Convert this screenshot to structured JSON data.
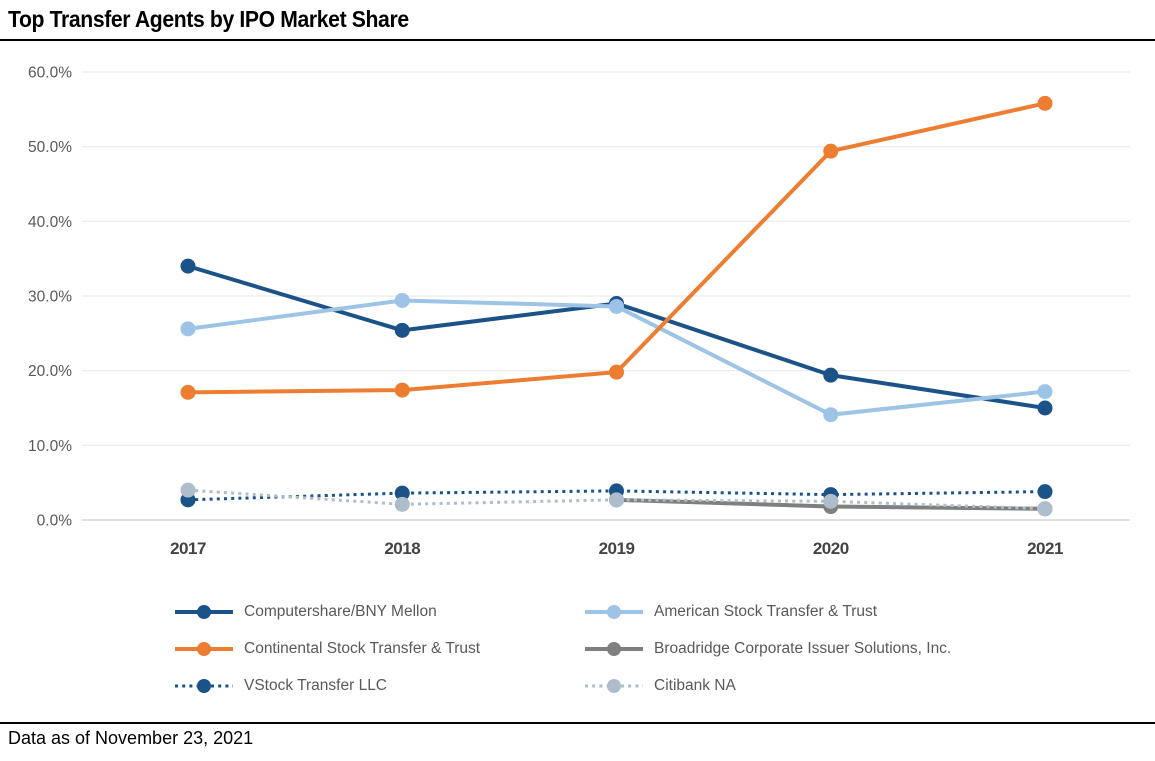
{
  "header": {
    "title": "Top Transfer Agents by IPO Market Share"
  },
  "footer": {
    "note": "Data as of November 23, 2021"
  },
  "colors": {
    "dark_blue": "#1B5288",
    "light_blue": "#9DC3E6",
    "orange": "#ED7D31",
    "gray": "#7F7F7F",
    "light_gray_blue": "#AEBDCB",
    "gridline": "#E9E9E9",
    "baseline": "#D6D6D6",
    "axis_text": "#595959",
    "xaxis_text": "#444444",
    "legend_text": "#595959"
  },
  "chart_data": {
    "type": "line",
    "title": "Top Transfer Agents by IPO Market Share",
    "categories": [
      "2017",
      "2018",
      "2019",
      "2020",
      "2021"
    ],
    "xlabel": "",
    "ylabel": "",
    "ylim": [
      0,
      60
    ],
    "grid": true,
    "legend_position": "bottom",
    "yticks": [
      "0.0%",
      "10.0%",
      "20.0%",
      "30.0%",
      "40.0%",
      "50.0%",
      "60.0%"
    ],
    "series": [
      {
        "name": "Computershare/BNY Mellon",
        "color": "#1B5288",
        "style": "solid",
        "values": [
          34.0,
          25.4,
          29.0,
          19.4,
          15.0
        ]
      },
      {
        "name": "American Stock Transfer & Trust",
        "color": "#9DC3E6",
        "style": "solid",
        "values": [
          25.6,
          29.4,
          28.6,
          14.1,
          17.2
        ]
      },
      {
        "name": "Continental Stock Transfer & Trust",
        "color": "#ED7D31",
        "style": "solid",
        "values": [
          17.1,
          17.4,
          19.8,
          49.4,
          55.8
        ]
      },
      {
        "name": "Broadridge Corporate Issuer Solutions, Inc.",
        "color": "#7F7F7F",
        "style": "solid",
        "values": [
          null,
          null,
          2.7,
          1.8,
          1.5
        ]
      },
      {
        "name": "VStock Transfer LLC",
        "color": "#1B5288",
        "style": "dotted",
        "values": [
          2.7,
          3.6,
          3.9,
          3.4,
          3.8
        ]
      },
      {
        "name": "Citibank NA",
        "color": "#AEBDCB",
        "style": "dotted",
        "values": [
          4.0,
          2.1,
          2.7,
          2.5,
          1.5
        ]
      }
    ]
  }
}
